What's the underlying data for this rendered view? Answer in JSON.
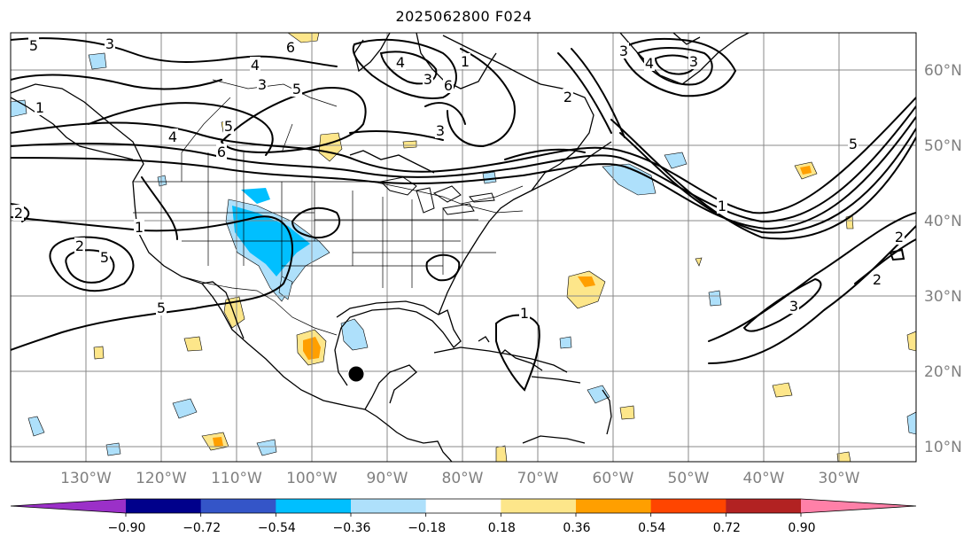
{
  "title": "2025062800 F024",
  "lon_labels": [
    "130°W",
    "120°W",
    "110°W",
    "100°W",
    "90°W",
    "80°W",
    "70°W",
    "60°W",
    "50°W",
    "40°W",
    "30°W"
  ],
  "lat_labels": [
    "60°N",
    "50°N",
    "40°N",
    "30°N",
    "20°N",
    "10°N"
  ],
  "colorbar": {
    "colors": [
      "#9b30c8",
      "#00008b",
      "#3455c8",
      "#00bfff",
      "#aee0fb",
      "#ffffff",
      "#fde68a",
      "#ff9f00",
      "#ff4500",
      "#b22222",
      "#ff80a8"
    ],
    "ticks": [
      "−0.90",
      "−0.72",
      "−0.54",
      "−0.36",
      "−0.18",
      "0.18",
      "0.36",
      "0.54",
      "0.72",
      "0.90"
    ]
  },
  "contour_labels": [
    "5",
    "3",
    "6",
    "4",
    "3",
    "5",
    "4",
    "3",
    "6",
    "5",
    "4",
    "3",
    "6",
    "3",
    "4",
    "3",
    "2",
    "5",
    "5",
    "1",
    "5",
    "2",
    "1",
    "2",
    "3",
    "1",
    "1",
    "2",
    "2",
    "1"
  ],
  "storm_marker": "black-dot"
}
